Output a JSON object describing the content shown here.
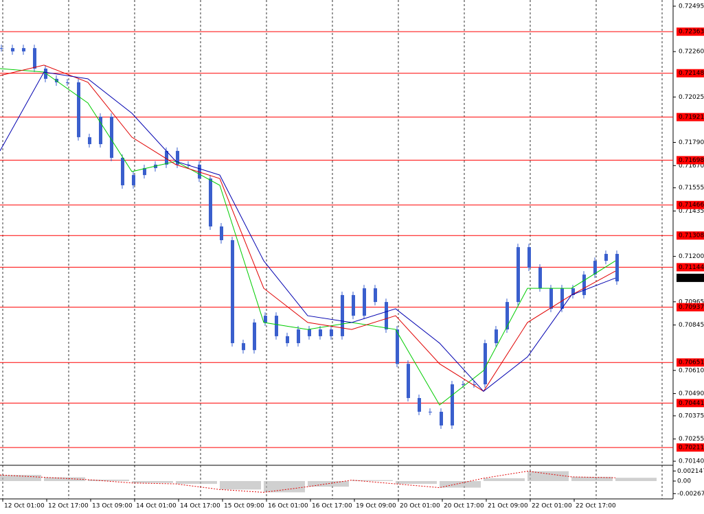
{
  "chart_data": {
    "type": "candlestick",
    "color": "#3a5fcd",
    "close": [
      0.72278,
      0.72261,
      0.72278,
      0.72172,
      0.72119,
      0.72101,
      0.72101,
      0.71817,
      0.71781,
      0.71923,
      0.7171,
      0.71568,
      0.71621,
      0.71657,
      0.71675,
      0.71746,
      0.71675,
      0.71675,
      0.71603,
      0.71355,
      0.71284,
      0.70751,
      0.70715,
      0.70858,
      0.70893,
      0.70787,
      0.70751,
      0.70822,
      0.70787,
      0.70822,
      0.70787,
      0.71,
      0.70893,
      0.71035,
      0.70964,
      0.70822,
      0.70644,
      0.70467,
      0.70396,
      0.70396,
      0.70325,
      0.70538,
      0.70538,
      0.70538,
      0.70751,
      0.70822,
      0.70964,
      0.71248,
      0.71142,
      0.71035,
      0.70929,
      0.71035,
      0.71,
      0.71106,
      0.71177,
      0.71213,
      0.71071
    ],
    "moving_averages": [
      {
        "color": "#00cc00",
        "values": [
          0.72172,
          0.72154,
          0.71994,
          0.71639,
          0.71692,
          0.71568,
          0.70858,
          0.70822,
          0.70858,
          0.70822,
          0.70431,
          0.70609,
          0.71035,
          0.71035,
          0.71177
        ]
      },
      {
        "color": "#e00000",
        "values": [
          0.72136,
          0.7219,
          0.72101,
          0.71817,
          0.71675,
          0.71603,
          0.71035,
          0.70858,
          0.70822,
          0.70893,
          0.70644,
          0.70502,
          0.70858,
          0.71,
          0.71124
        ]
      },
      {
        "color": "#0000b0",
        "values": [
          0.71746,
          0.72154,
          0.72119,
          0.71941,
          0.71692,
          0.71621,
          0.71177,
          0.70893,
          0.70858,
          0.70929,
          0.70751,
          0.70502,
          0.7068,
          0.71,
          0.71088
        ]
      }
    ],
    "levels": {
      "color": "#ff0000",
      "values": [
        0.72363,
        0.72148,
        0.71921,
        0.71698,
        0.71466,
        0.71308,
        0.71144,
        0.70937,
        0.70651,
        0.70441,
        0.70211
      ]
    },
    "current_price": 0.71089,
    "ylim": [
      0.70119,
      0.72527
    ],
    "yticks": [
      0.72495,
      {
        "value": 0.7226,
        "label": "0.72260"
      },
      0.72025,
      {
        "value": 0.7179,
        "label": "0.71790"
      },
      {
        "value": 0.7167,
        "label": "0.71670"
      },
      0.71555,
      0.71435,
      {
        "value": 0.712,
        "label": "0.71200"
      },
      0.70965,
      0.70845,
      {
        "value": 0.7061,
        "label": "0.70610"
      },
      {
        "value": 0.7049,
        "label": "0.70490"
      },
      0.70375,
      0.70255,
      {
        "value": 0.7014,
        "label": "0.70140"
      }
    ],
    "xlabels": [
      "12 Oct 01:00",
      "12 Oct 17:00",
      "13 Oct 09:00",
      "14 Oct 01:00",
      "14 Oct 17:00",
      "15 Oct 09:00",
      "16 Oct 01:00",
      "16 Oct 17:00",
      "19 Oct 09:00",
      "20 Oct 01:00",
      "20 Oct 17:00",
      "21 Oct 09:00",
      "22 Oct 01:00",
      "22 Oct 17:00"
    ],
    "oscillator": {
      "bar_color": "#b0b0b0",
      "line_color": "#e00000",
      "values": [
        0.0013,
        0.0008,
        0.0003,
        -0.0004,
        -0.0006,
        -0.0018,
        -0.0024,
        -0.0012,
        0.0002,
        -0.0006,
        -0.0014,
        0.0006,
        0.0021,
        0.0009,
        0.0007
      ],
      "ylim": [
        -0.0038,
        0.00307
      ],
      "yticks": [
        0.002147,
        {
          "value": 0,
          "label": "0.00"
        },
        -0.002676
      ]
    }
  }
}
